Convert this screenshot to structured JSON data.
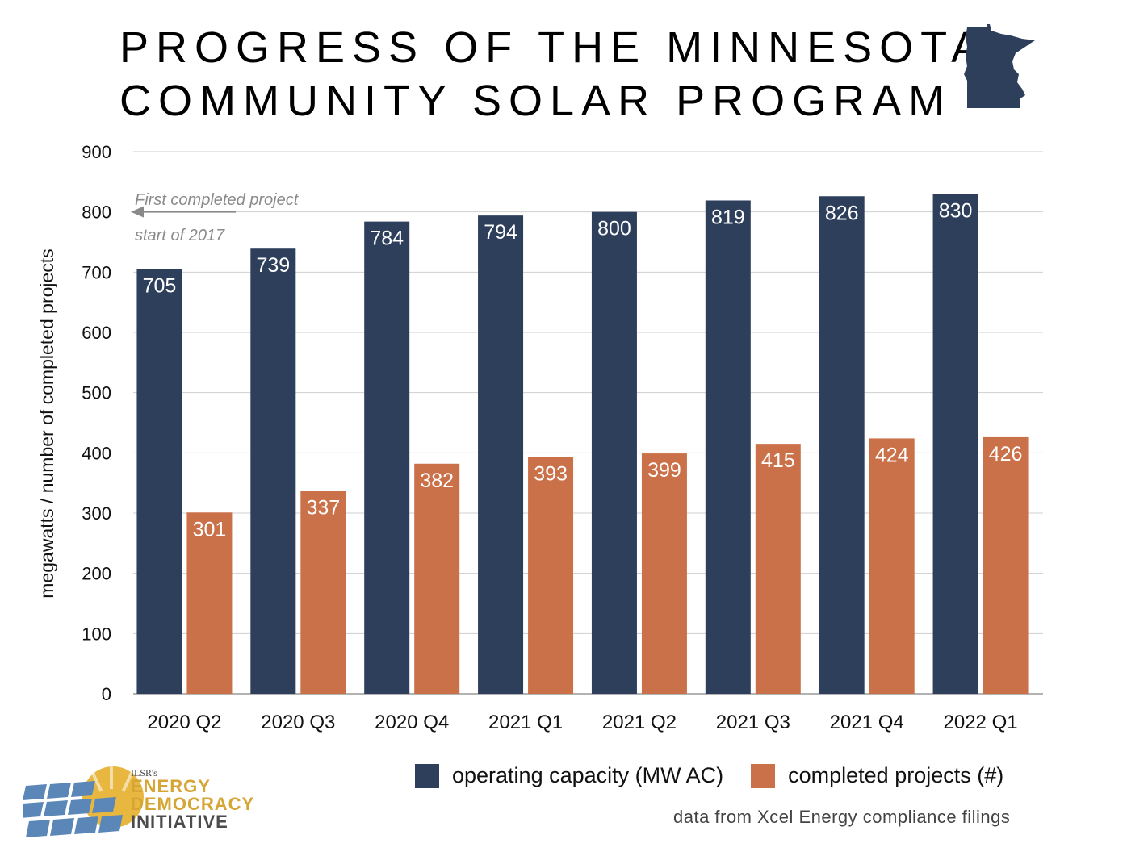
{
  "title_lines": [
    "PROGRESS OF THE MINNESOTA",
    "COMMUNITY SOLAR PROGRAM"
  ],
  "colors": {
    "capacity": "#2e3f5c",
    "projects": "#cb714a",
    "grid": "#cfcfcf",
    "axis": "#9a9a9a",
    "annotation": "#8a8a8a"
  },
  "icons": {
    "state": "minnesota-state-icon",
    "logo": "solar-panel-sun-logo-icon"
  },
  "chart_data": {
    "type": "bar",
    "title": "PROGRESS OF THE MINNESOTA COMMUNITY SOLAR PROGRAM",
    "xlabel": "",
    "ylabel": "megawatts / number of completed projects",
    "ylim": [
      0,
      900
    ],
    "yticks": [
      0,
      100,
      200,
      300,
      400,
      500,
      600,
      700,
      800,
      900
    ],
    "grid": true,
    "legend_position": "bottom-right",
    "categories": [
      "2020 Q2",
      "2020 Q3",
      "2020 Q4",
      "2021 Q1",
      "2021 Q2",
      "2021 Q3",
      "2021 Q4",
      "2022 Q1"
    ],
    "series": [
      {
        "name": "operating capacity (MW AC)",
        "values": [
          705,
          739,
          784,
          794,
          800,
          819,
          826,
          830
        ]
      },
      {
        "name": "completed projects (#)",
        "values": [
          301,
          337,
          382,
          393,
          399,
          415,
          424,
          426
        ]
      }
    ],
    "annotation": {
      "lines": [
        "First completed project",
        "start of 2017"
      ],
      "y": 800
    }
  },
  "source": "data from Xcel Energy compliance filings",
  "logo": {
    "small": "ILSR's",
    "line1": "ENERGY",
    "line2": "DEMOCRACY",
    "line3": "INITIATIVE"
  }
}
